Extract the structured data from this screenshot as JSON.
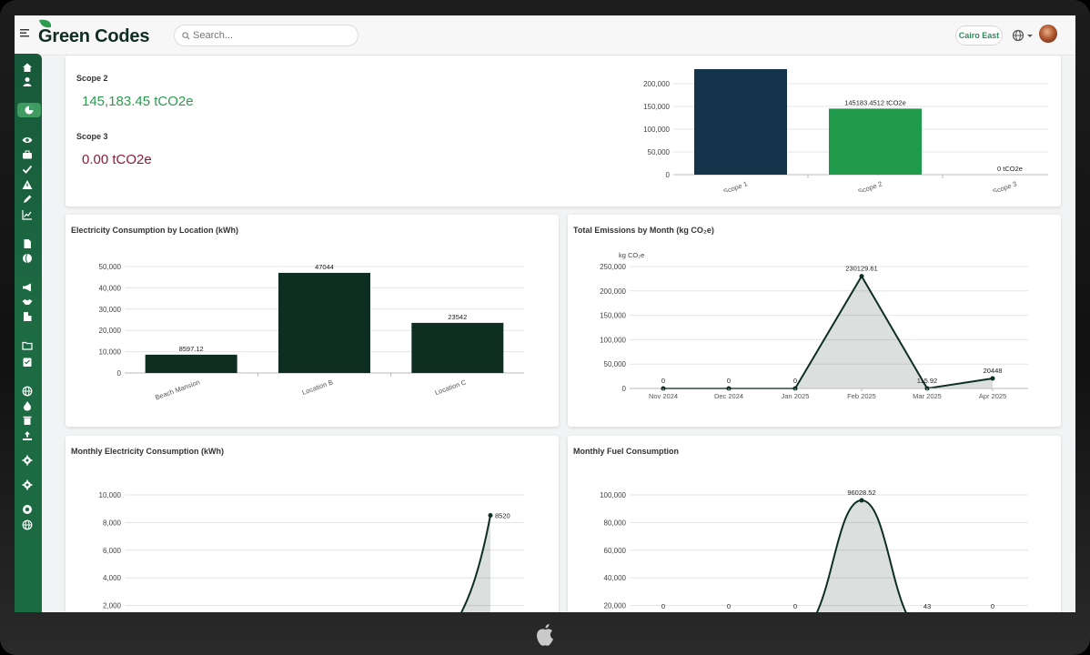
{
  "app": {
    "brand": "Green Codes",
    "search_placeholder": "Search...",
    "location": "Cairo East"
  },
  "summary": {
    "scope2_label": "Scope 2",
    "scope2_value": "145,183.45 tCO2e",
    "scope3_label": "Scope 3",
    "scope3_value": "0.00 tCO2e"
  },
  "colors": {
    "accent_green": "#2e9a50",
    "dark_green": "#0e2e22",
    "navy": "#13344a",
    "bar_green": "#1f9a4a",
    "scope3_red": "#8b1a3c"
  },
  "sidebar_icons": [
    "home-icon",
    "user-icon",
    "pie-chart-icon",
    "eye-icon",
    "briefcase-icon",
    "check-icon",
    "warning-icon",
    "pen-icon",
    "line-chart-icon",
    "document-icon",
    "globe-half-icon",
    "megaphone-icon",
    "handshake-icon",
    "building-icon",
    "folder-icon",
    "checklist-icon",
    "globe-icon",
    "fire-icon",
    "trash-icon",
    "upload-icon",
    "gear-icon",
    "gear-icon",
    "support-icon",
    "globe-icon"
  ],
  "chart_data": [
    {
      "id": "scope",
      "type": "bar",
      "title": "",
      "categories": [
        "Scope 1",
        "Scope 2",
        "Scope 3"
      ],
      "values": [
        240000,
        145183.4512,
        0
      ],
      "data_labels": [
        "",
        "145183.4512 tCO2e",
        "0 tCO2e"
      ],
      "colors": [
        "#13344a",
        "#1f9a4a",
        "#1f9a4a"
      ],
      "yticks": [
        0,
        50000,
        100000,
        150000,
        200000
      ],
      "ytick_labels": [
        "0",
        "50,000",
        "100,000",
        "150,000",
        "200,000"
      ],
      "ylim": [
        0,
        230000
      ],
      "grid": true
    },
    {
      "id": "electricity_location",
      "type": "bar",
      "title": "Electricity Consumption by Location (kWh)",
      "categories": [
        "Beach Mansion",
        "Location B",
        "Location C"
      ],
      "values": [
        8597.12,
        47044,
        23542
      ],
      "data_labels": [
        "8597.12",
        "47044",
        "23542"
      ],
      "yticks": [
        0,
        10000,
        20000,
        30000,
        40000,
        50000
      ],
      "ytick_labels": [
        "0",
        "10,000",
        "20,000",
        "30,000",
        "40,000",
        "50,000"
      ],
      "ylim": [
        0,
        50000
      ],
      "grid": true
    },
    {
      "id": "emissions_month",
      "type": "area",
      "title": "Total Emissions by Month (kg CO₂e)",
      "ylabel": "kg CO₂e",
      "categories": [
        "Nov 2024",
        "Dec 2024",
        "Jan 2025",
        "Feb 2025",
        "Mar 2025",
        "Apr 2025"
      ],
      "values": [
        0,
        0,
        0,
        230129.61,
        115.92,
        20448
      ],
      "data_labels": [
        "0",
        "0",
        "0",
        "230129.61",
        "115.92",
        "20448"
      ],
      "yticks": [
        0,
        50000,
        100000,
        150000,
        200000,
        250000
      ],
      "ytick_labels": [
        "0",
        "50,000",
        "100,000",
        "150,000",
        "200,000",
        "250,000"
      ],
      "ylim": [
        0,
        250000
      ],
      "grid": true
    },
    {
      "id": "monthly_electricity",
      "type": "area",
      "title": "Monthly Electricity Consumption (kWh)",
      "values": [
        8520
      ],
      "data_labels": [
        "8520"
      ],
      "yticks": [
        2000,
        4000,
        6000,
        8000,
        10000
      ],
      "ytick_labels": [
        "2,000",
        "4,000",
        "6,000",
        "8,000",
        "10,000"
      ],
      "ylim": [
        0,
        10000
      ],
      "grid": true
    },
    {
      "id": "monthly_fuel",
      "type": "area",
      "title": "Monthly Fuel Consumption",
      "values": [
        0,
        0,
        0,
        96028.52,
        43,
        0
      ],
      "data_labels": [
        "0",
        "0",
        "0",
        "96028.52",
        "43",
        "0"
      ],
      "yticks": [
        20000,
        40000,
        60000,
        80000,
        100000
      ],
      "ytick_labels": [
        "20,000",
        "40,000",
        "60,000",
        "80,000",
        "100,000"
      ],
      "ylim": [
        0,
        100000
      ],
      "grid": true
    }
  ]
}
